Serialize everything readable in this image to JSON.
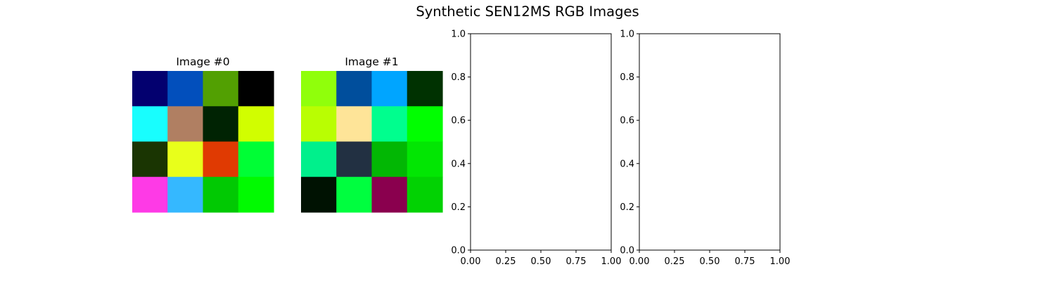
{
  "figure": {
    "title": "Synthetic SEN12MS RGB Images"
  },
  "chart_data": [
    {
      "type": "heatmap",
      "title": "Image #0",
      "axes_visible": false,
      "rows": 4,
      "cols": 4,
      "cells": [
        [
          "#03006f",
          "#024fbc",
          "#52a002",
          "#000000"
        ],
        [
          "#18fefe",
          "#b07f62",
          "#002303",
          "#d1fe00"
        ],
        [
          "#1a3502",
          "#e8ff1b",
          "#e03a02",
          "#00fe35"
        ],
        [
          "#fe3ae6",
          "#35b8ff",
          "#01c903",
          "#01fa01"
        ]
      ]
    },
    {
      "type": "heatmap",
      "title": "Image #1",
      "axes_visible": false,
      "rows": 4,
      "cols": 4,
      "cells": [
        [
          "#90ff0b",
          "#004e9c",
          "#00a5ff",
          "#003201"
        ],
        [
          "#b9fe02",
          "#fee498",
          "#00fe8e",
          "#01fe01"
        ],
        [
          "#00f08c",
          "#223042",
          "#02b704",
          "#02e603"
        ],
        [
          "#001202",
          "#00fe3f",
          "#8a004e",
          "#02d203"
        ]
      ]
    },
    {
      "type": "scatter",
      "title": "",
      "series": [],
      "xlim": [
        0,
        1
      ],
      "ylim": [
        0,
        1
      ],
      "xticks": [
        "0.00",
        "0.25",
        "0.50",
        "0.75",
        "1.00"
      ],
      "yticks": [
        "0.0",
        "0.2",
        "0.4",
        "0.6",
        "0.8",
        "1.0"
      ],
      "grid": false
    },
    {
      "type": "scatter",
      "title": "",
      "series": [],
      "xlim": [
        0,
        1
      ],
      "ylim": [
        0,
        1
      ],
      "xticks": [
        "0.00",
        "0.25",
        "0.50",
        "0.75",
        "1.00"
      ],
      "yticks": [
        "0.0",
        "0.2",
        "0.4",
        "0.6",
        "0.8",
        "1.0"
      ],
      "grid": false
    }
  ]
}
